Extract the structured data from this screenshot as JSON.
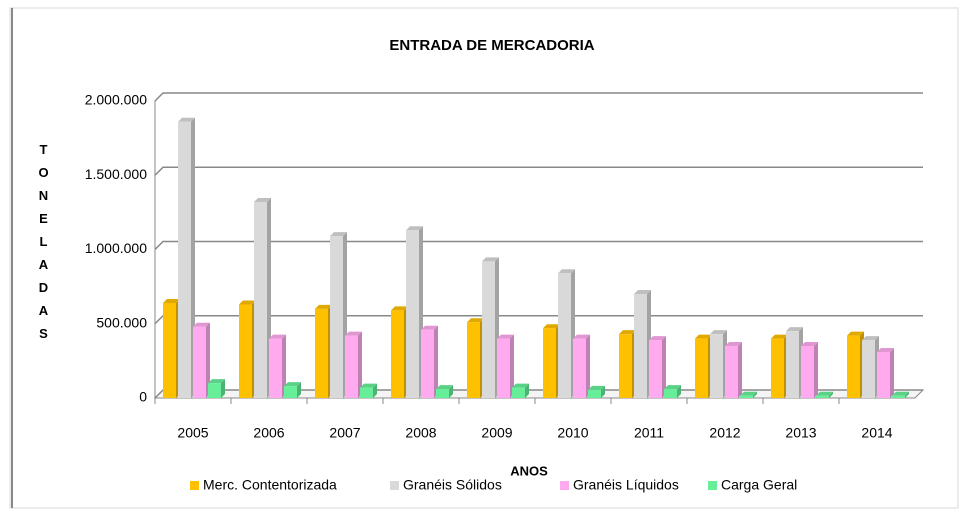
{
  "chart_data": {
    "type": "bar",
    "title": "ENTRADA DE MERCADORIA",
    "x_label": "ANOS",
    "y_label": "TONELADAS",
    "categories": [
      "2005",
      "2006",
      "2007",
      "2008",
      "2009",
      "2010",
      "2011",
      "2012",
      "2013",
      "2014"
    ],
    "series": [
      {
        "name": "Merc. Contentorizada",
        "color": "#ffc000",
        "values": [
          640000,
          630000,
          600000,
          590000,
          510000,
          470000,
          430000,
          400000,
          400000,
          420000
        ]
      },
      {
        "name": "Granéis Sólidos",
        "color": "#d9d9d9",
        "values": [
          1860000,
          1320000,
          1090000,
          1130000,
          920000,
          840000,
          700000,
          430000,
          450000,
          390000
        ]
      },
      {
        "name": "Granéis Líquidos",
        "color": "#ffaaee",
        "values": [
          480000,
          400000,
          420000,
          460000,
          400000,
          400000,
          390000,
          350000,
          350000,
          310000
        ]
      },
      {
        "name": "Carga Geral",
        "color": "#66ee99",
        "values": [
          100000,
          80000,
          70000,
          60000,
          70000,
          55000,
          60000,
          15000,
          15000,
          15000
        ]
      }
    ],
    "ylim": [
      0,
      2000000
    ],
    "yticks": [
      0,
      {
        "value": 500000,
        "label": "500.000"
      },
      {
        "value": 1000000,
        "label": "1.000.000"
      },
      {
        "value": 1500000,
        "label": "1.500.000"
      },
      {
        "value": 2000000,
        "label": "2.000.000"
      }
    ],
    "grid": true,
    "legend": "bottom"
  }
}
